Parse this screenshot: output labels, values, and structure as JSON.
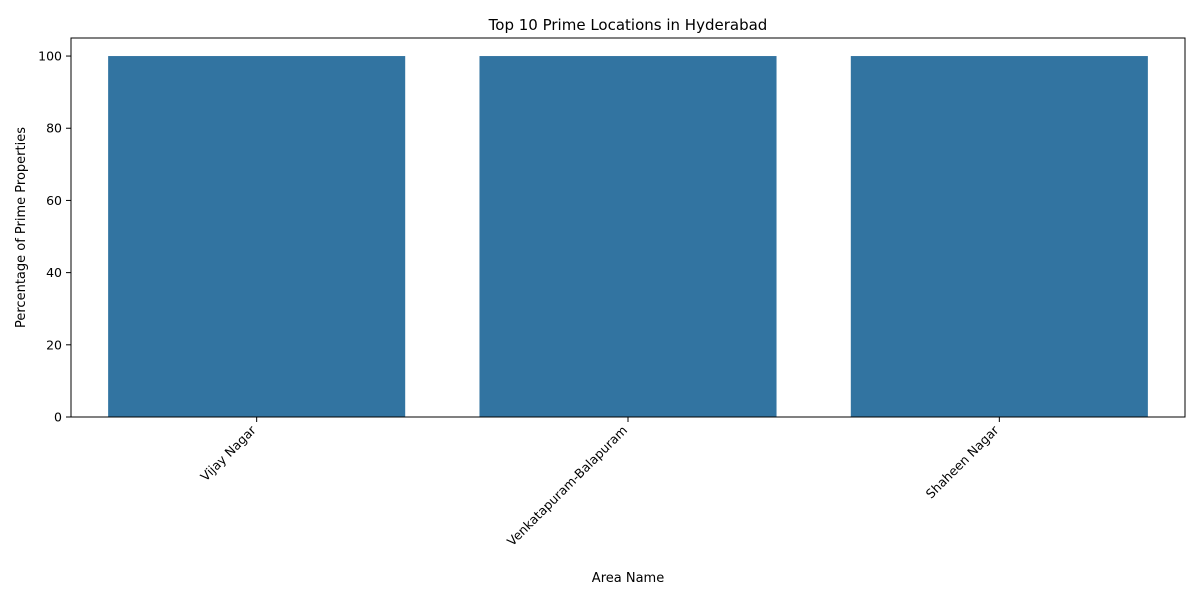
{
  "chart_data": {
    "type": "bar",
    "title": "Top 10 Prime Locations in Hyderabad",
    "xlabel": "Area Name",
    "ylabel": "Percentage of Prime Properties",
    "categories": [
      "Vijay Nagar",
      "Venkatapuram-Balapuram",
      "Shaheen Nagar"
    ],
    "values": [
      100,
      100,
      100
    ],
    "ylim": [
      0,
      105
    ],
    "yticks": [
      0,
      20,
      40,
      60,
      80,
      100
    ],
    "bar_color": "#3274a1",
    "grid": false,
    "legend": "none"
  }
}
